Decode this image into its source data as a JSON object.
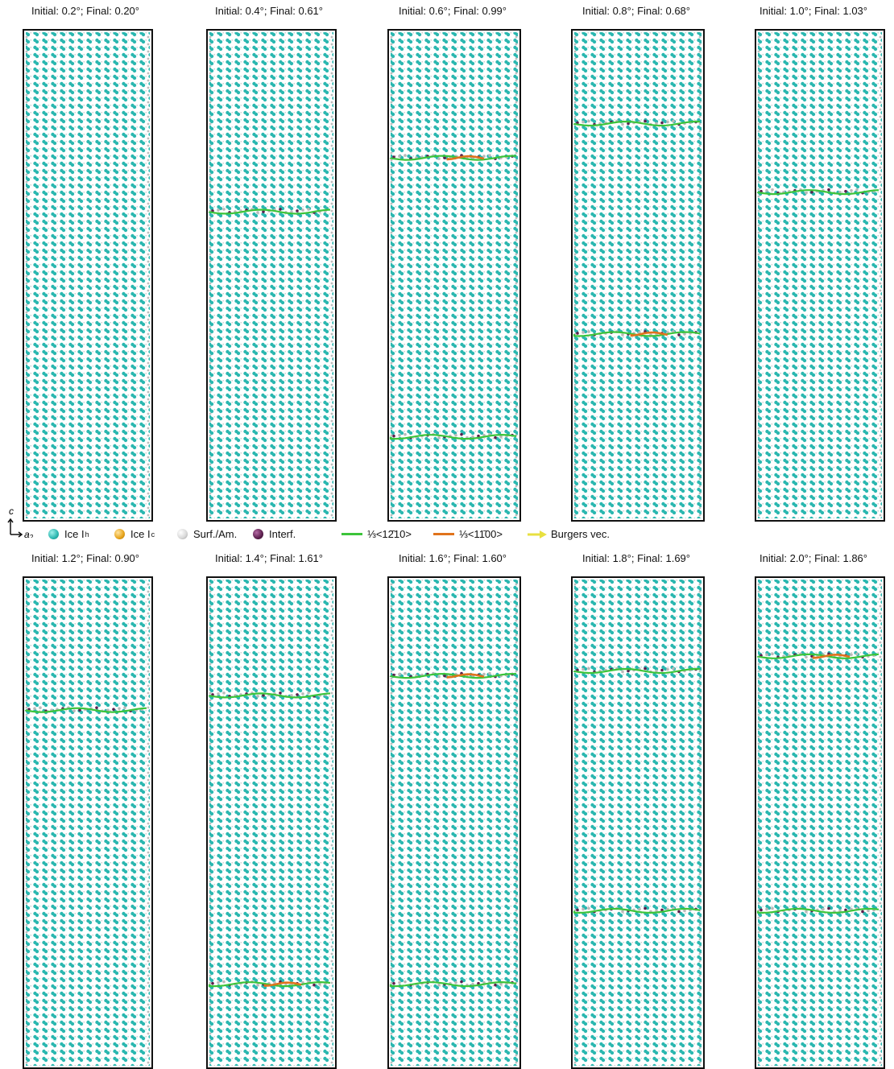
{
  "colors": {
    "ice_h": "#2bb7b0",
    "ice_c": "#e6a31a",
    "surf_am": "#d7d7d7",
    "interf": "#5b1f4d",
    "line_1210": "#3cc43a",
    "line_1100": "#e0731c",
    "burgers": "#e8e040"
  },
  "panels": [
    {
      "title": "Initial: 0.2°; Final: 0.20°",
      "lines": []
    },
    {
      "title": "Initial: 0.4°; Final: 0.61°",
      "lines": [
        {
          "kind": "green",
          "y": 0.37
        }
      ]
    },
    {
      "title": "Initial: 0.6°; Final: 0.99°",
      "lines": [
        {
          "kind": "mixed",
          "y": 0.26
        },
        {
          "kind": "green",
          "y": 0.83
        }
      ]
    },
    {
      "title": "Initial: 0.8°; Final: 0.68°",
      "lines": [
        {
          "kind": "green",
          "y": 0.19
        },
        {
          "kind": "mixed",
          "y": 0.62
        }
      ]
    },
    {
      "title": "Initial: 1.0°; Final: 1.03°",
      "lines": [
        {
          "kind": "green",
          "y": 0.33
        }
      ]
    },
    {
      "title": "Initial: 1.2°; Final: 0.90°",
      "lines": [
        {
          "kind": "green",
          "y": 0.27
        }
      ]
    },
    {
      "title": "Initial: 1.4°; Final: 1.61°",
      "lines": [
        {
          "kind": "green",
          "y": 0.24
        },
        {
          "kind": "mixed",
          "y": 0.83
        }
      ]
    },
    {
      "title": "Initial: 1.6°; Final: 1.60°",
      "lines": [
        {
          "kind": "mixed",
          "y": 0.2
        },
        {
          "kind": "green",
          "y": 0.83
        }
      ]
    },
    {
      "title": "Initial: 1.8°; Final: 1.69°",
      "lines": [
        {
          "kind": "green",
          "y": 0.19
        },
        {
          "kind": "green",
          "y": 0.68
        }
      ]
    },
    {
      "title": "Initial: 2.0°; Final: 1.86°",
      "lines": [
        {
          "kind": "mixed",
          "y": 0.16
        },
        {
          "kind": "green",
          "y": 0.68
        }
      ]
    }
  ],
  "legend": {
    "axis_c": "c",
    "axis_a": "a",
    "axis_a_sub": "2",
    "ice_h": "Ice I",
    "ice_h_sub": "h",
    "ice_c": "Ice I",
    "ice_c_sub": "c",
    "surf_am": "Surf./Am.",
    "interf": "Interf.",
    "line_1210": "⅓<12̄10>",
    "line_1100": "⅓<11̄00>",
    "burgers": "Burgers vec."
  }
}
